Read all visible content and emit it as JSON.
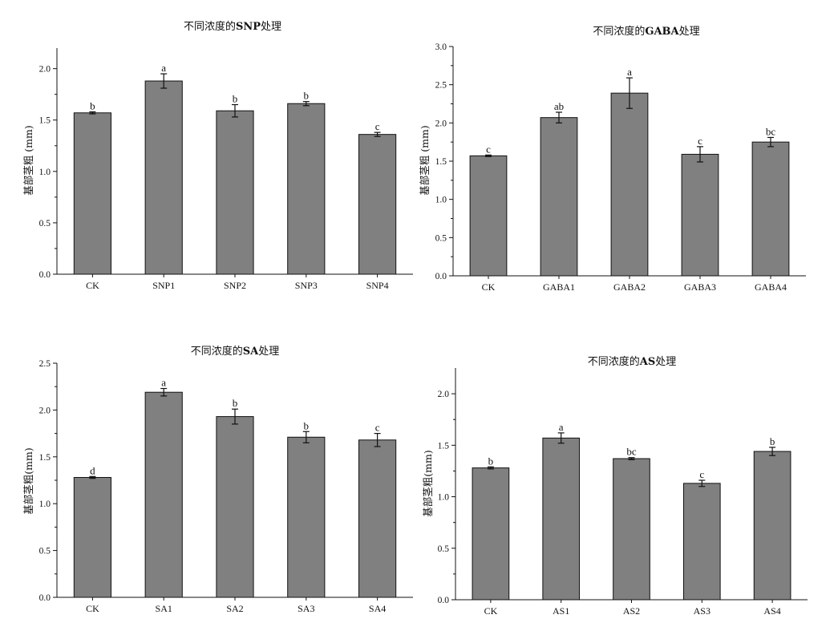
{
  "chart_data": [
    {
      "type": "bar",
      "title_parts": [
        {
          "text": "不同浓度的",
          "bold": false
        },
        {
          "text": "SNP",
          "bold": true
        },
        {
          "text": "处理",
          "bold": false
        }
      ],
      "ylabel": "基部茎粗 (mm)",
      "xlabel": "",
      "ylim": [
        0,
        2.2
      ],
      "yticks": [
        "0.0",
        "0.5",
        "1.0",
        "1.5",
        "2.0"
      ],
      "categories": [
        "CK",
        "SNP1",
        "SNP2",
        "SNP3",
        "SNP4"
      ],
      "values": [
        1.57,
        1.88,
        1.59,
        1.66,
        1.36
      ],
      "errors": [
        0.01,
        0.07,
        0.06,
        0.02,
        0.02
      ],
      "letters": [
        "b",
        "a",
        "b",
        "b",
        "c"
      ],
      "bar_color": "#808080",
      "grid": false
    },
    {
      "type": "bar",
      "title_parts": [
        {
          "text": "不同浓度的",
          "bold": false
        },
        {
          "text": "GABA",
          "bold": true
        },
        {
          "text": "处理",
          "bold": false
        }
      ],
      "ylabel": "基部茎粗 (mm)",
      "xlabel": "",
      "ylim": [
        0,
        3.0
      ],
      "yticks": [
        "0.0",
        "0.5",
        "1.0",
        "1.5",
        "2.0",
        "2.5",
        "3.0"
      ],
      "categories": [
        "CK",
        "GABA1",
        "GABA2",
        "GABA3",
        "GABA4"
      ],
      "values": [
        1.57,
        2.07,
        2.39,
        1.59,
        1.75
      ],
      "errors": [
        0.01,
        0.07,
        0.2,
        0.1,
        0.06
      ],
      "letters": [
        "c",
        "ab",
        "a",
        "c",
        "bc"
      ],
      "bar_color": "#808080",
      "grid": false
    },
    {
      "type": "bar",
      "title_parts": [
        {
          "text": "不同浓度的",
          "bold": false
        },
        {
          "text": "SA",
          "bold": true
        },
        {
          "text": "处理",
          "bold": false
        }
      ],
      "ylabel": "基部茎粗(mm)",
      "xlabel": "",
      "ylim": [
        0,
        2.5
      ],
      "yticks": [
        "0.0",
        "0.5",
        "1.0",
        "1.5",
        "2.0",
        "2.5"
      ],
      "categories": [
        "CK",
        "SA1",
        "SA2",
        "SA3",
        "SA4"
      ],
      "values": [
        1.28,
        2.19,
        1.93,
        1.71,
        1.68
      ],
      "errors": [
        0.01,
        0.04,
        0.08,
        0.06,
        0.07
      ],
      "letters": [
        "d",
        "a",
        "b",
        "b",
        "c"
      ],
      "bar_color": "#808080",
      "grid": false
    },
    {
      "type": "bar",
      "title_parts": [
        {
          "text": "不同浓度的",
          "bold": false
        },
        {
          "text": "AS",
          "bold": true
        },
        {
          "text": "处理",
          "bold": false
        }
      ],
      "ylabel": "基部茎粗(mm)",
      "xlabel": "",
      "ylim": [
        0,
        2.25
      ],
      "yticks": [
        "0.0",
        "0.5",
        "1.0",
        "1.5",
        "2.0"
      ],
      "categories": [
        "CK",
        "AS1",
        "AS2",
        "AS3",
        "AS4"
      ],
      "values": [
        1.28,
        1.57,
        1.37,
        1.13,
        1.44
      ],
      "errors": [
        0.01,
        0.05,
        0.01,
        0.03,
        0.04
      ],
      "letters": [
        "b",
        "a",
        "bc",
        "c",
        "b"
      ],
      "bar_color": "#808080",
      "grid": false
    }
  ]
}
